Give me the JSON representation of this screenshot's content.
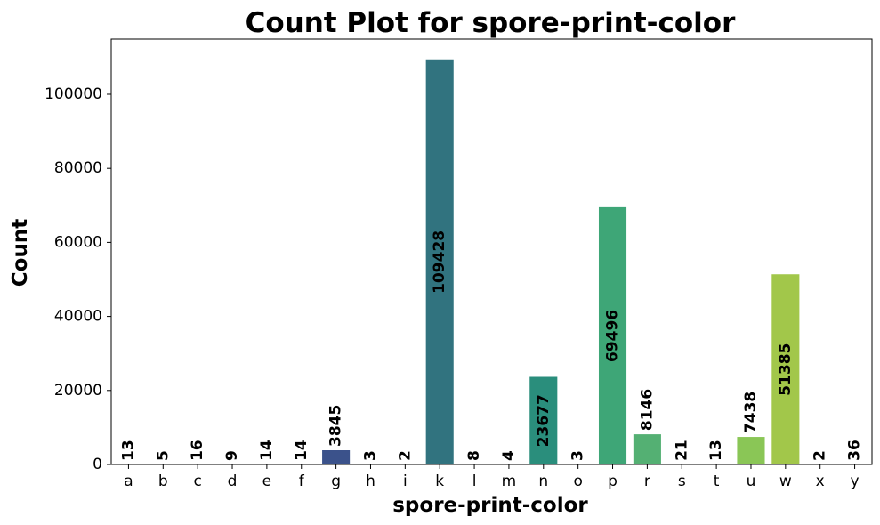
{
  "chart_data": {
    "type": "bar",
    "title": "Count Plot for spore-print-color",
    "xlabel": "spore-print-color",
    "ylabel": "Count",
    "categories": [
      "a",
      "b",
      "c",
      "d",
      "e",
      "f",
      "g",
      "h",
      "i",
      "k",
      "l",
      "m",
      "n",
      "o",
      "p",
      "r",
      "s",
      "t",
      "u",
      "w",
      "x",
      "y"
    ],
    "values": [
      13,
      5,
      16,
      9,
      14,
      14,
      3845,
      3,
      2,
      109428,
      8,
      4,
      23677,
      3,
      69496,
      8146,
      21,
      13,
      7438,
      51385,
      2,
      36
    ],
    "value_labels": [
      "13",
      "5",
      "16",
      "9",
      "14",
      "14",
      "3845",
      "3",
      "2",
      "109428",
      "8",
      "4",
      "23677",
      "3",
      "69496",
      "8146",
      "21",
      "13",
      "7438",
      "51385",
      "2",
      "36"
    ],
    "yticks": [
      0,
      20000,
      40000,
      60000,
      80000,
      100000
    ],
    "ytick_labels": [
      "0",
      "20000",
      "40000",
      "60000",
      "80000",
      "100000"
    ],
    "ylim": [
      0,
      114900
    ],
    "grid": false,
    "palette": "viridis",
    "colors": [
      "#3b528b",
      "#3b528b",
      "#3b528b",
      "#3b528b",
      "#3b528b",
      "#3b528b",
      "#3b528b",
      "#3b528b",
      "#3b528b",
      "#31737f",
      "#31737f",
      "#31737f",
      "#2a8e7c",
      "#2a8e7c",
      "#3ea677",
      "#54b073",
      "#54b073",
      "#54b073",
      "#8ac656",
      "#a2c74a",
      "#a2c74a",
      "#a2c74a"
    ]
  }
}
